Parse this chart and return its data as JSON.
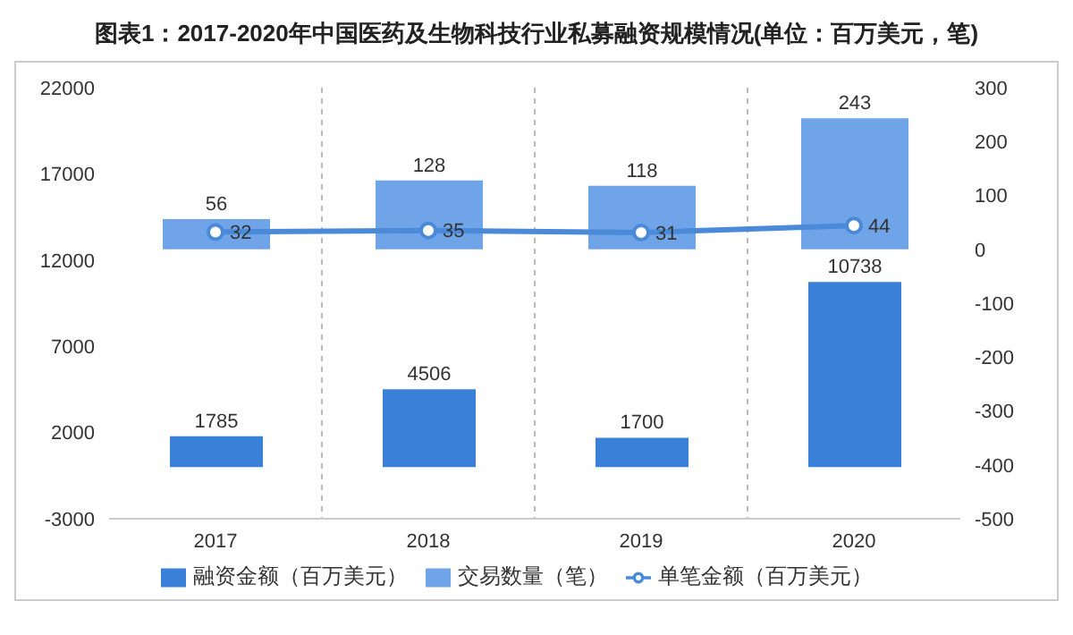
{
  "chart_data": {
    "type": "bar",
    "title": "图表1：2017-2020年中国医药及生物科技行业私募融资规模情况(单位：百万美元，笔)",
    "categories": [
      "2017",
      "2018",
      "2019",
      "2020"
    ],
    "series": [
      {
        "name": "融资金额（百万美元）",
        "color": "#3a7fd8",
        "values": [
          1785,
          4506,
          1700,
          10738
        ]
      },
      {
        "name": "交易数量（笔）",
        "axis": "y2",
        "color": "#6fa5e8",
        "values": [
          56,
          128,
          118,
          243
        ]
      },
      {
        "name": "单笔金额（百万美元）",
        "type": "line",
        "axis": "y2",
        "color": "#4a8ad8",
        "marker": "circle",
        "values": [
          32,
          35,
          31,
          44
        ]
      }
    ],
    "ylim": [
      -3000,
      22000
    ],
    "yticks": [
      -3000,
      2000,
      7000,
      12000,
      17000,
      22000
    ],
    "y2lim": [
      -500,
      300
    ],
    "y2ticks": [
      -500,
      -400,
      -300,
      -200,
      -100,
      0,
      100,
      200,
      300
    ],
    "grid": "x",
    "legend": "bottom",
    "data_labels": true
  }
}
